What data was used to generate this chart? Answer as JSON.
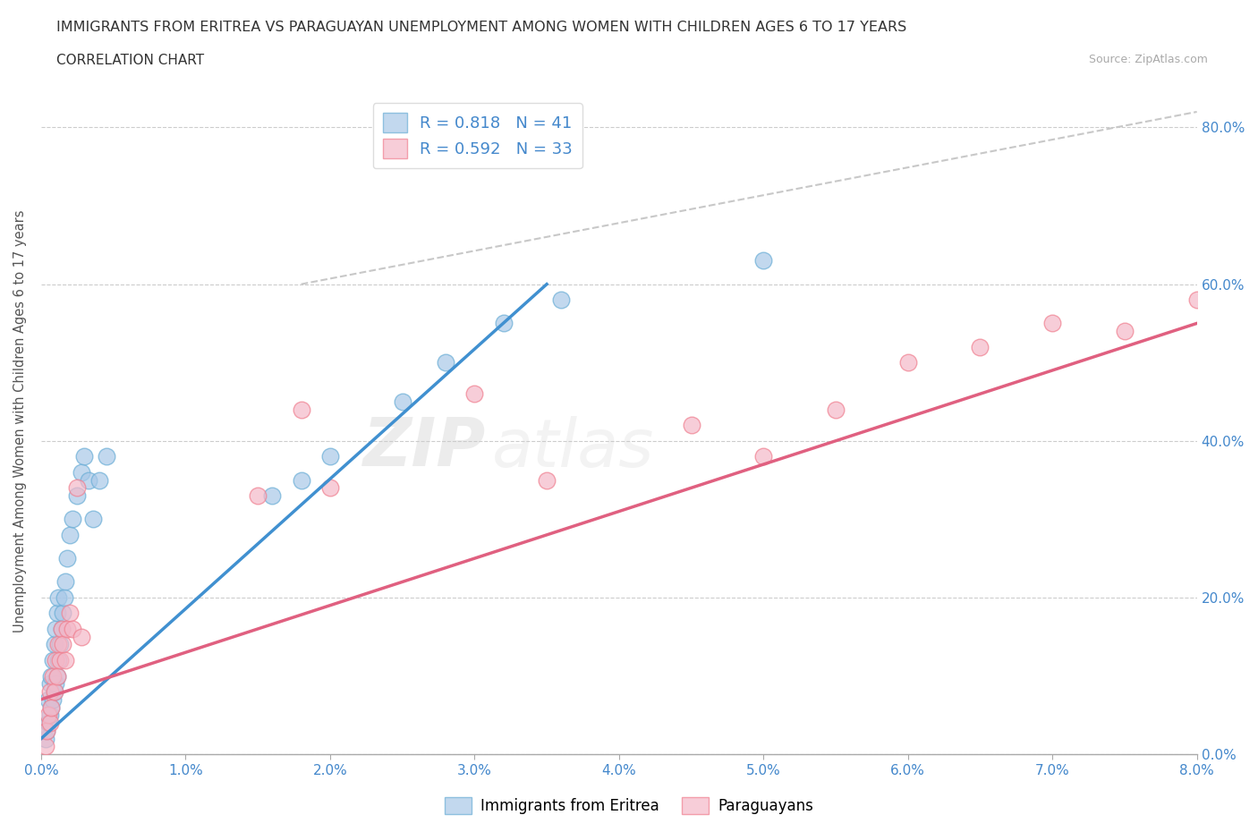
{
  "title": "IMMIGRANTS FROM ERITREA VS PARAGUAYAN UNEMPLOYMENT AMONG WOMEN WITH CHILDREN AGES 6 TO 17 YEARS",
  "subtitle": "CORRELATION CHART",
  "source": "Source: ZipAtlas.com",
  "xlabel_ticks": [
    "0.0%",
    "1.0%",
    "2.0%",
    "3.0%",
    "4.0%",
    "5.0%",
    "6.0%",
    "7.0%",
    "8.0%"
  ],
  "ylabel_ticks": [
    "0.0%",
    "20.0%",
    "40.0%",
    "60.0%",
    "80.0%"
  ],
  "ylabel_label": "Unemployment Among Women with Children Ages 6 to 17 years",
  "xlim": [
    0.0,
    0.08
  ],
  "ylim": [
    0.0,
    0.85
  ],
  "legend_eritrea_R": "0.818",
  "legend_eritrea_N": "41",
  "legend_paraguay_R": "0.592",
  "legend_paraguay_N": "33",
  "color_eritrea": "#a8c8e8",
  "color_eritrea_edge": "#6baed6",
  "color_paraguay": "#f4b8c8",
  "color_paraguay_edge": "#f08090",
  "color_eritrea_line": "#4090d0",
  "color_paraguay_line": "#e06080",
  "color_diagonal": "#c8c8c8",
  "watermark_zip": "ZIP",
  "watermark_atlas": "atlas",
  "eritrea_scatter_x": [
    0.0003,
    0.0004,
    0.0005,
    0.0005,
    0.0006,
    0.0006,
    0.0007,
    0.0007,
    0.0008,
    0.0008,
    0.0009,
    0.0009,
    0.001,
    0.001,
    0.0011,
    0.0011,
    0.0012,
    0.0012,
    0.0013,
    0.0014,
    0.0015,
    0.0016,
    0.0017,
    0.0018,
    0.002,
    0.0022,
    0.0025,
    0.0028,
    0.003,
    0.0033,
    0.0036,
    0.004,
    0.0045,
    0.016,
    0.018,
    0.02,
    0.025,
    0.028,
    0.032,
    0.036,
    0.05
  ],
  "eritrea_scatter_y": [
    0.02,
    0.03,
    0.04,
    0.07,
    0.05,
    0.09,
    0.06,
    0.1,
    0.07,
    0.12,
    0.08,
    0.14,
    0.09,
    0.16,
    0.1,
    0.18,
    0.12,
    0.2,
    0.14,
    0.16,
    0.18,
    0.2,
    0.22,
    0.25,
    0.28,
    0.3,
    0.33,
    0.36,
    0.38,
    0.35,
    0.3,
    0.35,
    0.38,
    0.33,
    0.35,
    0.38,
    0.45,
    0.5,
    0.55,
    0.58,
    0.63
  ],
  "paraguay_scatter_x": [
    0.0003,
    0.0004,
    0.0005,
    0.0006,
    0.0006,
    0.0007,
    0.0008,
    0.0009,
    0.001,
    0.0011,
    0.0012,
    0.0013,
    0.0014,
    0.0015,
    0.0017,
    0.0018,
    0.002,
    0.0022,
    0.0025,
    0.0028,
    0.015,
    0.018,
    0.02,
    0.03,
    0.035,
    0.045,
    0.05,
    0.055,
    0.06,
    0.065,
    0.07,
    0.075,
    0.08
  ],
  "paraguay_scatter_y": [
    0.01,
    0.03,
    0.05,
    0.04,
    0.08,
    0.06,
    0.1,
    0.08,
    0.12,
    0.1,
    0.14,
    0.12,
    0.16,
    0.14,
    0.12,
    0.16,
    0.18,
    0.16,
    0.34,
    0.15,
    0.33,
    0.44,
    0.34,
    0.46,
    0.35,
    0.42,
    0.38,
    0.44,
    0.5,
    0.52,
    0.55,
    0.54,
    0.58
  ],
  "eritrea_line_x": [
    0.0,
    0.035
  ],
  "eritrea_line_y": [
    0.02,
    0.6
  ],
  "paraguay_line_x": [
    0.0,
    0.08
  ],
  "paraguay_line_y": [
    0.07,
    0.55
  ],
  "diag_line_x": [
    0.018,
    0.08
  ],
  "diag_line_y": [
    0.6,
    0.82
  ]
}
